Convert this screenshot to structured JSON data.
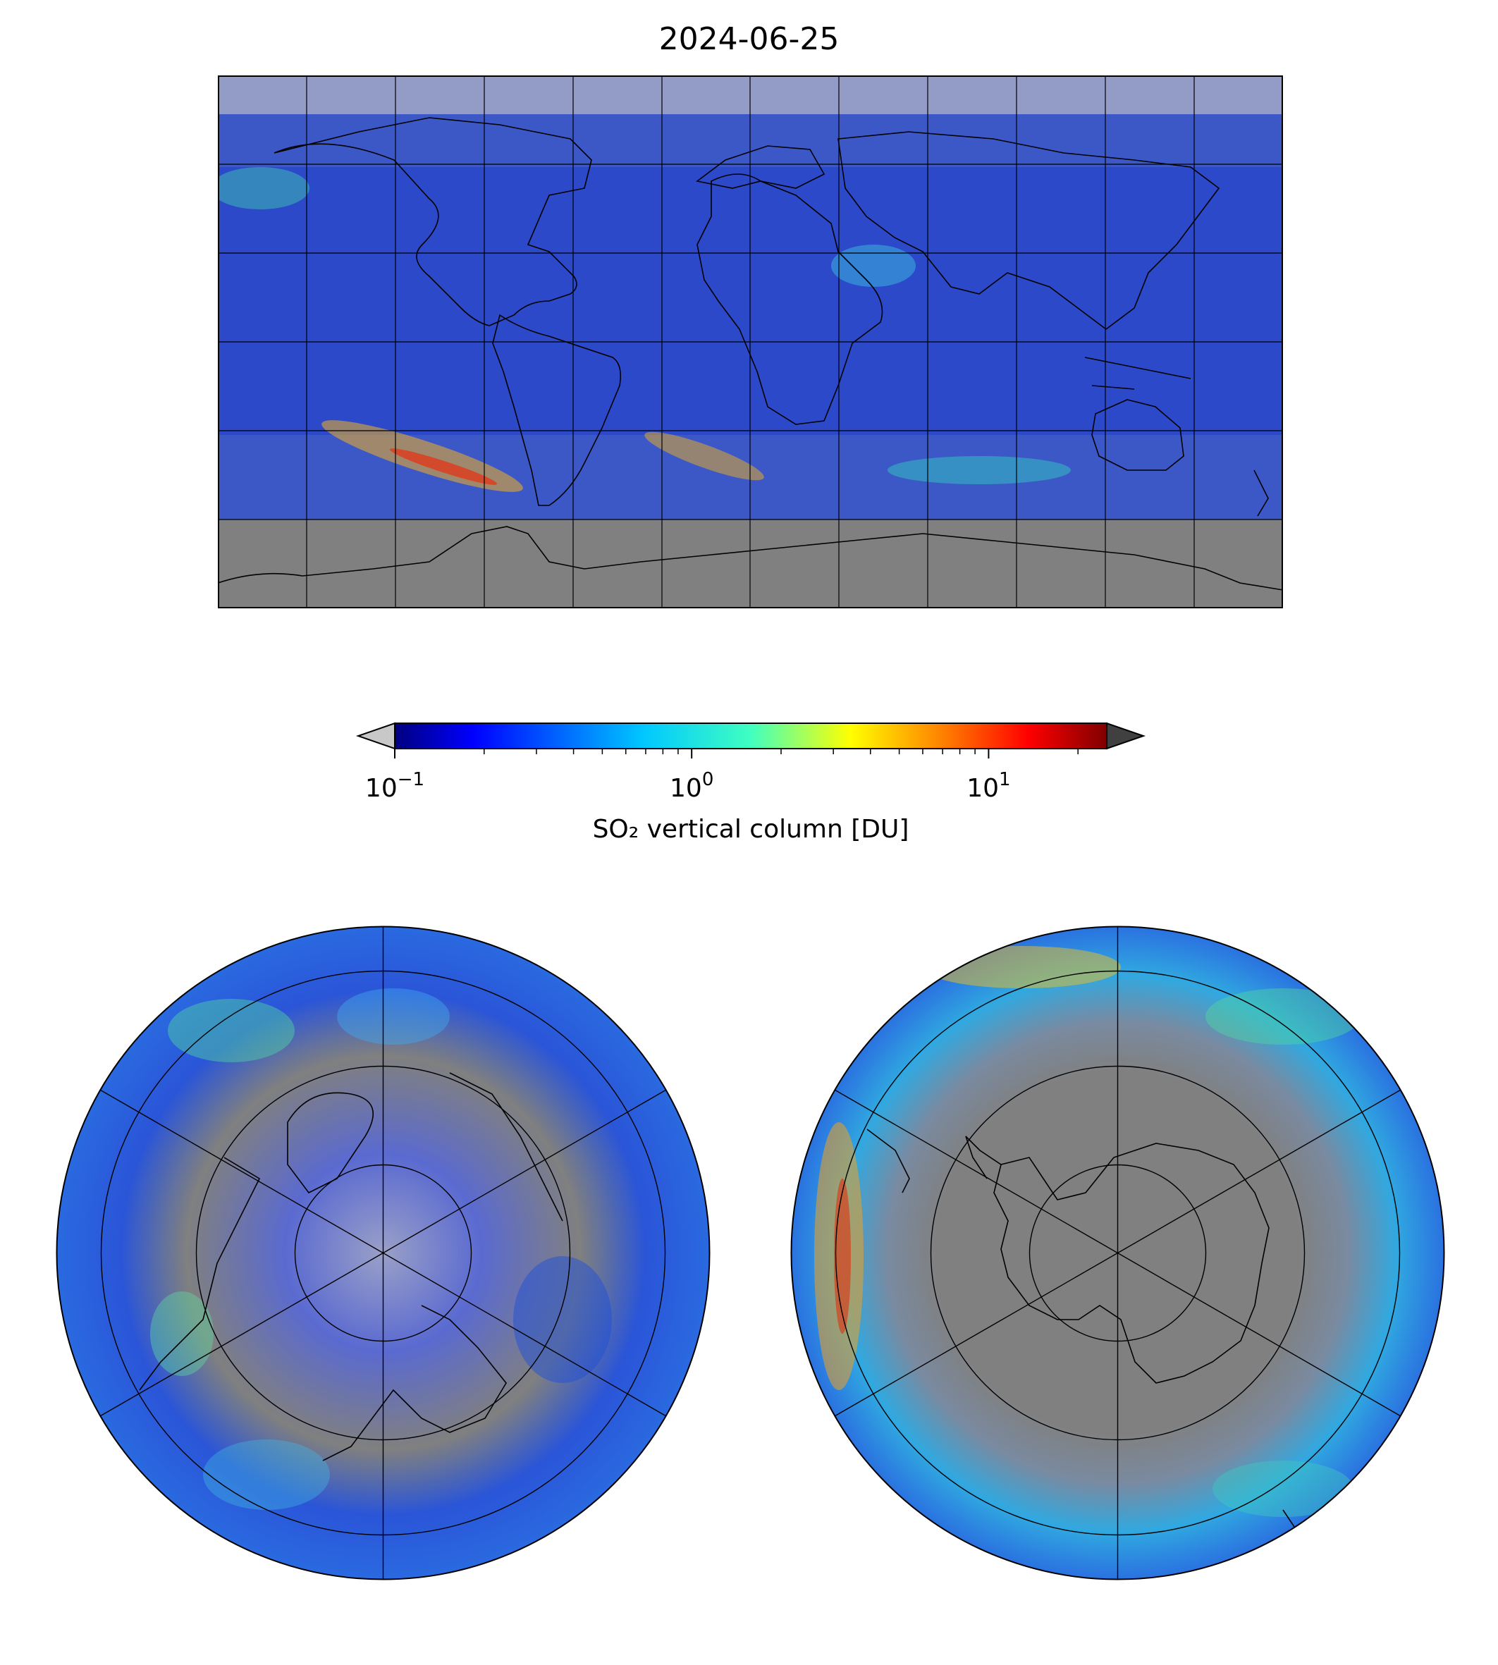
{
  "figure": {
    "title": "2024-06-25"
  },
  "colorbar": {
    "label": "SO₂ vertical column [DU]",
    "scale": "log",
    "min": 0.1,
    "max": 25,
    "extend": "both",
    "under_color": "#c8c8c8",
    "over_color": "#404040",
    "colormap": "jet",
    "ticks": [
      {
        "value": 0.1,
        "base": "10",
        "exp": "−1"
      },
      {
        "value": 1,
        "base": "10",
        "exp": "0"
      },
      {
        "value": 10,
        "base": "10",
        "exp": "1"
      }
    ]
  },
  "map_colors": {
    "no_data": "#808080",
    "below_range": "#c0c0c0",
    "coastline": "#000000",
    "gridline": "#000000"
  },
  "chart_data": [
    {
      "type": "heatmap",
      "name": "global-map",
      "projection": "plate-carree",
      "lon_range": [
        -180,
        180
      ],
      "lat_range": [
        -90,
        90
      ],
      "gridlines_lon_step": 30,
      "gridlines_lat_step": 30,
      "no_data_lat_below": -60
    },
    {
      "type": "heatmap",
      "name": "north-polar-map",
      "projection": "north-polar-stereographic",
      "lat_circles": [
        80,
        60,
        40
      ],
      "meridians_step": 60
    },
    {
      "type": "heatmap",
      "name": "south-polar-map",
      "projection": "south-polar-stereographic",
      "lat_circles": [
        -80,
        -60,
        -40
      ],
      "meridians_step": 60
    }
  ]
}
